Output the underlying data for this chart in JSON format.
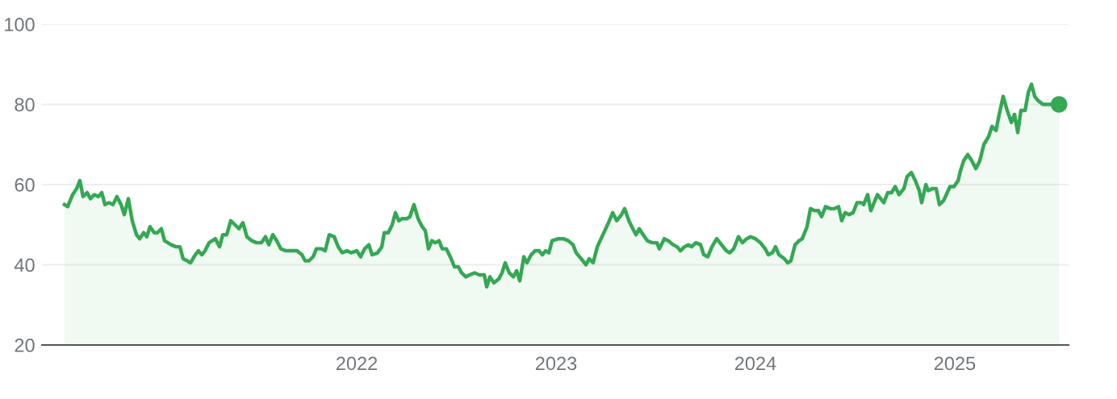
{
  "chart_data": {
    "type": "area",
    "x": [
      2020.534,
      2020.55,
      2020.575,
      2020.595,
      2020.611,
      2020.627,
      2020.648,
      2020.664,
      2020.684,
      2020.704,
      2020.721,
      2020.737,
      2020.757,
      2020.777,
      2020.797,
      2020.818,
      2020.834,
      2020.854,
      2020.874,
      2020.895,
      2020.911,
      2020.931,
      2020.947,
      2020.963,
      2020.984,
      2021.0,
      2021.02,
      2021.036,
      2021.069,
      2021.093,
      2021.113,
      2021.129,
      2021.15,
      2021.166,
      2021.19,
      2021.206,
      2021.223,
      2021.239,
      2021.259,
      2021.291,
      2021.312,
      2021.328,
      2021.348,
      2021.368,
      2021.389,
      2021.409,
      2021.429,
      2021.449,
      2021.474,
      2021.498,
      2021.522,
      2021.542,
      2021.559,
      2021.579,
      2021.599,
      2021.619,
      2021.644,
      2021.676,
      2021.7,
      2021.725,
      2021.741,
      2021.761,
      2021.781,
      2021.798,
      2021.822,
      2021.842,
      2021.862,
      2021.887,
      2021.907,
      2021.927,
      2021.951,
      2021.972,
      2022.0,
      2022.02,
      2022.04,
      2022.061,
      2022.077,
      2022.105,
      2022.126,
      2022.138,
      2022.158,
      2022.178,
      2022.194,
      2022.211,
      2022.227,
      2022.251,
      2022.267,
      2022.287,
      2022.308,
      2022.328,
      2022.344,
      2022.36,
      2022.377,
      2022.393,
      2022.413,
      2022.429,
      2022.449,
      2022.474,
      2022.49,
      2022.51,
      2022.526,
      2022.547,
      2022.567,
      2022.591,
      2022.615,
      2022.64,
      2022.652,
      2022.668,
      2022.688,
      2022.713,
      2022.729,
      2022.745,
      2022.765,
      2022.786,
      2022.802,
      2022.818,
      2022.838,
      2022.854,
      2022.875,
      2022.895,
      2022.915,
      2022.931,
      2022.947,
      2022.964,
      2022.98,
      2023.012,
      2023.037,
      2023.061,
      2023.085,
      2023.101,
      2023.126,
      2023.15,
      2023.166,
      2023.186,
      2023.207,
      2023.235,
      2023.263,
      2023.284,
      2023.304,
      2023.328,
      2023.344,
      2023.365,
      2023.385,
      2023.401,
      2023.417,
      2023.437,
      2023.458,
      2023.482,
      2023.506,
      2023.518,
      2023.543,
      2023.563,
      2023.587,
      2023.607,
      2023.624,
      2023.644,
      2023.664,
      2023.68,
      2023.701,
      2023.725,
      2023.741,
      2023.761,
      2023.782,
      2023.806,
      2023.83,
      2023.854,
      2023.871,
      2023.891,
      2023.915,
      2023.935,
      2023.956,
      2023.976,
      2024.0,
      2024.025,
      2024.049,
      2024.065,
      2024.085,
      2024.101,
      2024.118,
      2024.146,
      2024.162,
      2024.178,
      2024.199,
      2024.219,
      2024.235,
      2024.259,
      2024.276,
      2024.296,
      2024.316,
      2024.332,
      2024.352,
      2024.377,
      2024.397,
      2024.417,
      2024.433,
      2024.45,
      2024.47,
      2024.49,
      2024.51,
      2024.531,
      2024.543,
      2024.563,
      2024.579,
      2024.612,
      2024.644,
      2024.664,
      2024.684,
      2024.701,
      2024.721,
      2024.745,
      2024.761,
      2024.782,
      2024.802,
      2024.822,
      2024.834,
      2024.855,
      2024.867,
      2024.887,
      2024.907,
      2024.923,
      2024.944,
      2024.976,
      2024.996,
      2025.017,
      2025.029,
      2025.045,
      2025.065,
      2025.085,
      2025.106,
      2025.126,
      2025.146,
      2025.17,
      2025.187,
      2025.207,
      2025.223,
      2025.243,
      2025.263,
      2025.284,
      2025.3,
      2025.316,
      2025.332,
      2025.353,
      2025.369,
      2025.385,
      2025.401,
      2025.417,
      2025.442,
      2025.523
    ],
    "series": [
      {
        "color": "#34a853",
        "values": [
          55,
          54.5,
          57.5,
          59,
          61,
          57,
          58,
          56.5,
          57.5,
          57,
          58,
          55,
          55.5,
          55,
          57,
          55,
          52.5,
          56.5,
          51,
          47.5,
          46.5,
          48,
          47,
          49.5,
          48,
          48,
          49,
          46,
          45,
          44.5,
          44.5,
          41.5,
          41,
          40.5,
          42.5,
          43.5,
          42.5,
          43.5,
          45.5,
          46.5,
          44.5,
          47.5,
          47.5,
          51,
          50,
          49,
          50.5,
          47,
          46,
          45.5,
          45.5,
          47,
          45,
          47.5,
          46,
          44,
          43.5,
          43.5,
          43.5,
          42.5,
          41,
          41,
          42,
          44,
          44,
          43.5,
          47.5,
          47,
          44.5,
          43,
          43.5,
          43,
          43.5,
          42,
          44,
          45,
          42.5,
          43,
          44.5,
          48,
          48,
          50,
          53,
          51,
          51.5,
          51.5,
          52,
          55,
          51.5,
          49.5,
          48.5,
          44,
          46,
          45.5,
          46,
          44,
          44,
          41.5,
          39.5,
          39.5,
          38,
          37,
          37.5,
          38,
          37.5,
          37.5,
          34.5,
          37,
          35.5,
          36.5,
          38,
          40.5,
          38,
          37,
          38.5,
          36,
          42,
          40.5,
          42.5,
          43.5,
          43.5,
          42.5,
          43.5,
          43,
          46,
          46.5,
          46.5,
          46,
          45,
          43,
          41.5,
          40,
          41.5,
          40.5,
          44.5,
          47.5,
          50.5,
          53,
          51,
          52.5,
          54,
          51,
          49,
          47.5,
          49,
          47.5,
          46,
          45.5,
          45.5,
          44,
          46.5,
          46,
          45,
          44.5,
          43.5,
          44.5,
          45,
          44.5,
          45.5,
          45,
          42.5,
          42,
          44.5,
          46.5,
          45,
          43.5,
          43,
          44,
          47,
          45.5,
          46.5,
          47,
          46.5,
          45.5,
          44,
          42.5,
          43,
          44.5,
          42.5,
          41.5,
          40.5,
          41,
          45,
          46,
          46.5,
          49.5,
          54,
          53.5,
          53.5,
          52,
          54.5,
          54,
          54,
          54.5,
          51,
          53,
          52.5,
          53,
          55.5,
          55.5,
          55,
          57.5,
          53.5,
          57.5,
          55.5,
          58,
          58,
          59.5,
          57.5,
          59,
          62,
          63,
          61,
          58.5,
          55.5,
          60,
          58.5,
          59,
          59,
          55,
          56,
          59.5,
          59.5,
          61,
          63.5,
          66,
          67.5,
          66,
          64,
          66,
          70,
          72,
          74.5,
          73.5,
          77.5,
          82,
          78.5,
          75.5,
          77.5,
          73,
          78.5,
          78.5,
          83,
          85,
          82,
          81,
          80,
          80
        ]
      },
      {
        "type": "scatter",
        "color": "#34a853",
        "x": [
          2025.523
        ],
        "values": [
          80
        ]
      }
    ],
    "xlim": [
      2020.421,
      2025.571
    ],
    "xticks": [
      {
        "value": 2022,
        "label": "2022"
      },
      {
        "value": 2023,
        "label": "2023"
      },
      {
        "value": 2024,
        "label": "2024"
      },
      {
        "value": 2025,
        "label": "2025"
      }
    ],
    "ylim": [
      20,
      100
    ],
    "yticks": [
      20,
      40,
      60,
      80,
      100
    ],
    "grid": "y"
  }
}
